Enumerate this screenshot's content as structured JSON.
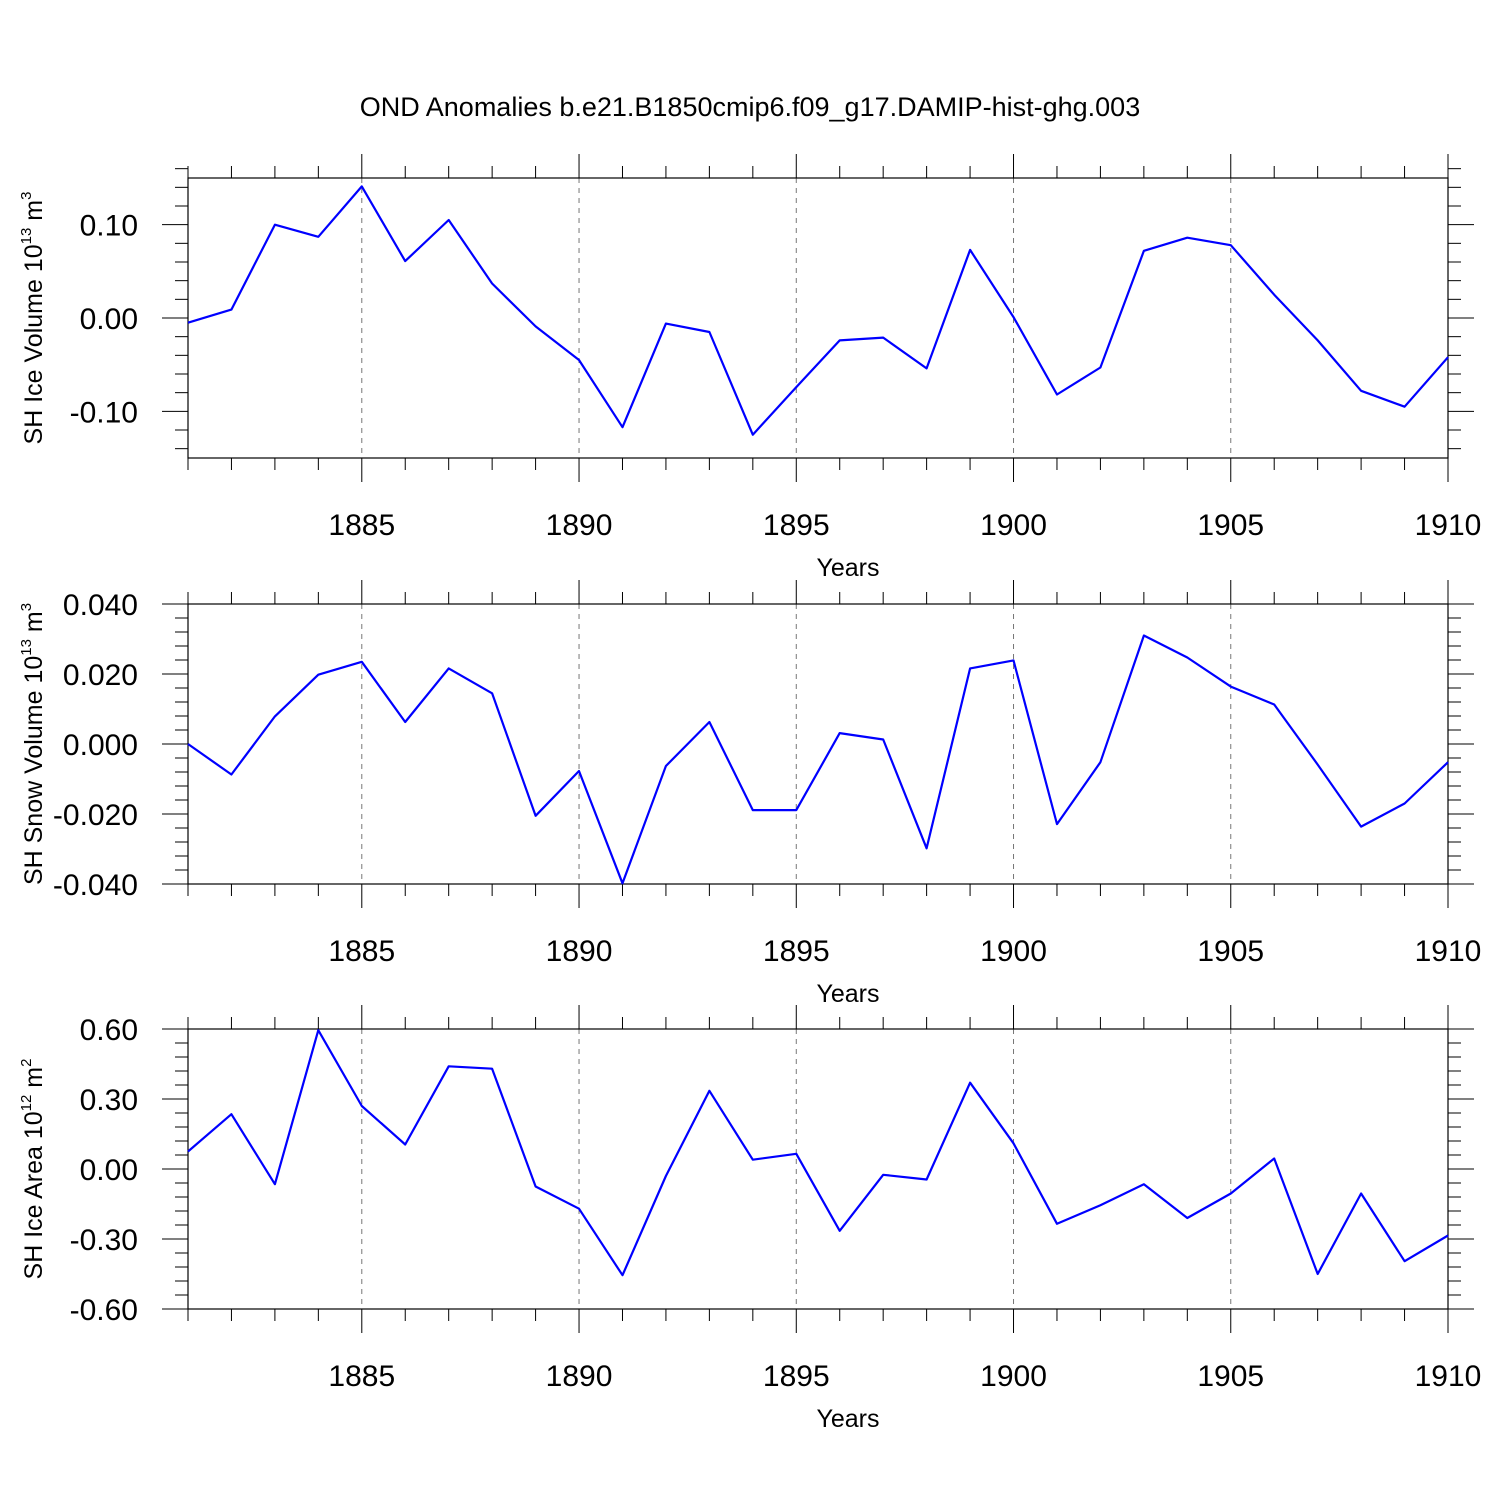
{
  "title": "OND Anomalies b.e21.B1850cmip6.f09_g17.DAMIP-hist-ghg.003",
  "line_color": "#0000ff",
  "chart_data": [
    {
      "type": "line",
      "xlabel": "Years",
      "ylabel": {
        "text": "SH Ice Volume 10",
        "exp": "13",
        "unit": " m",
        "unit_exp": "3"
      },
      "xlim": [
        1881,
        1910
      ],
      "ylim": [
        -0.15,
        0.15
      ],
      "xticks": [
        1885,
        1890,
        1895,
        1900,
        1905,
        1910
      ],
      "xtick_labels": [
        "1885",
        "1890",
        "1895",
        "1900",
        "1905",
        "1910"
      ],
      "yticks": [
        0.1,
        0.0,
        -0.1
      ],
      "ytick_labels": [
        "0.10",
        "0.00",
        "-0.10"
      ],
      "grid": "vertical dashed at labeled years",
      "series": [
        {
          "x": [
            1881,
            1882,
            1883,
            1884,
            1885,
            1886,
            1887,
            1888,
            1889,
            1890,
            1891,
            1892,
            1893,
            1894,
            1895,
            1896,
            1897,
            1898,
            1899,
            1900,
            1901,
            1902,
            1903,
            1904,
            1905,
            1906,
            1907,
            1908,
            1909,
            1910
          ],
          "values": [
            -0.005,
            0.009,
            0.1,
            0.087,
            0.141,
            0.061,
            0.105,
            0.037,
            -0.009,
            -0.045,
            -0.117,
            -0.006,
            -0.015,
            -0.125,
            -0.074,
            -0.024,
            -0.021,
            -0.054,
            0.073,
            0.001,
            -0.082,
            -0.053,
            0.072,
            0.086,
            0.078,
            0.025,
            -0.024,
            -0.078,
            -0.095,
            -0.042
          ]
        }
      ]
    },
    {
      "type": "line",
      "xlabel": "Years",
      "ylabel": {
        "text": "SH Snow Volume 10",
        "exp": "13",
        "unit": " m",
        "unit_exp": "3"
      },
      "xlim": [
        1881,
        1910
      ],
      "ylim": [
        -0.04,
        0.04
      ],
      "xticks": [
        1885,
        1890,
        1895,
        1900,
        1905,
        1910
      ],
      "xtick_labels": [
        "1885",
        "1890",
        "1895",
        "1900",
        "1905",
        "1910"
      ],
      "yticks": [
        0.04,
        0.02,
        0.0,
        -0.02,
        -0.04
      ],
      "ytick_labels": [
        "0.040",
        "0.020",
        "0.000",
        "-0.020",
        "-0.040"
      ],
      "grid": "vertical dashed at labeled years",
      "series": [
        {
          "x": [
            1881,
            1882,
            1883,
            1884,
            1885,
            1886,
            1887,
            1888,
            1889,
            1890,
            1891,
            1892,
            1893,
            1894,
            1895,
            1896,
            1897,
            1898,
            1899,
            1900,
            1901,
            1902,
            1903,
            1904,
            1905,
            1906,
            1907,
            1908,
            1909,
            1910
          ],
          "values": [
            0.0,
            -0.0087,
            0.0079,
            0.0198,
            0.0235,
            0.0063,
            0.0216,
            0.0145,
            -0.0205,
            -0.0077,
            -0.0398,
            -0.0063,
            0.0063,
            -0.0189,
            -0.0189,
            0.0031,
            0.0013,
            -0.0298,
            0.0216,
            0.0239,
            -0.0229,
            -0.0052,
            0.031,
            0.0247,
            0.0164,
            0.0113,
            -0.0059,
            -0.0236,
            -0.017,
            -0.0052
          ]
        }
      ]
    },
    {
      "type": "line",
      "xlabel": "Years",
      "ylabel": {
        "text": "SH Ice Area 10",
        "exp": "12",
        "unit": " m",
        "unit_exp": "2"
      },
      "xlim": [
        1881,
        1910
      ],
      "ylim": [
        -0.6,
        0.6
      ],
      "xticks": [
        1885,
        1890,
        1895,
        1900,
        1905,
        1910
      ],
      "xtick_labels": [
        "1885",
        "1890",
        "1895",
        "1900",
        "1905",
        "1910"
      ],
      "yticks": [
        0.6,
        0.3,
        0.0,
        -0.3,
        -0.6
      ],
      "ytick_labels": [
        "0.60",
        "0.30",
        "0.00",
        "-0.30",
        "-0.60"
      ],
      "grid": "vertical dashed at labeled years",
      "series": [
        {
          "x": [
            1881,
            1882,
            1883,
            1884,
            1885,
            1886,
            1887,
            1888,
            1889,
            1890,
            1891,
            1892,
            1893,
            1894,
            1895,
            1896,
            1897,
            1898,
            1899,
            1900,
            1901,
            1902,
            1903,
            1904,
            1905,
            1906,
            1907,
            1908,
            1909,
            1910
          ],
          "values": [
            0.075,
            0.235,
            -0.065,
            0.595,
            0.27,
            0.105,
            0.44,
            0.43,
            -0.075,
            -0.17,
            -0.455,
            -0.03,
            0.335,
            0.04,
            0.065,
            -0.265,
            -0.025,
            -0.045,
            0.37,
            0.11,
            -0.235,
            -0.155,
            -0.065,
            -0.21,
            -0.105,
            0.045,
            -0.45,
            -0.105,
            -0.395,
            -0.285
          ]
        }
      ]
    }
  ]
}
